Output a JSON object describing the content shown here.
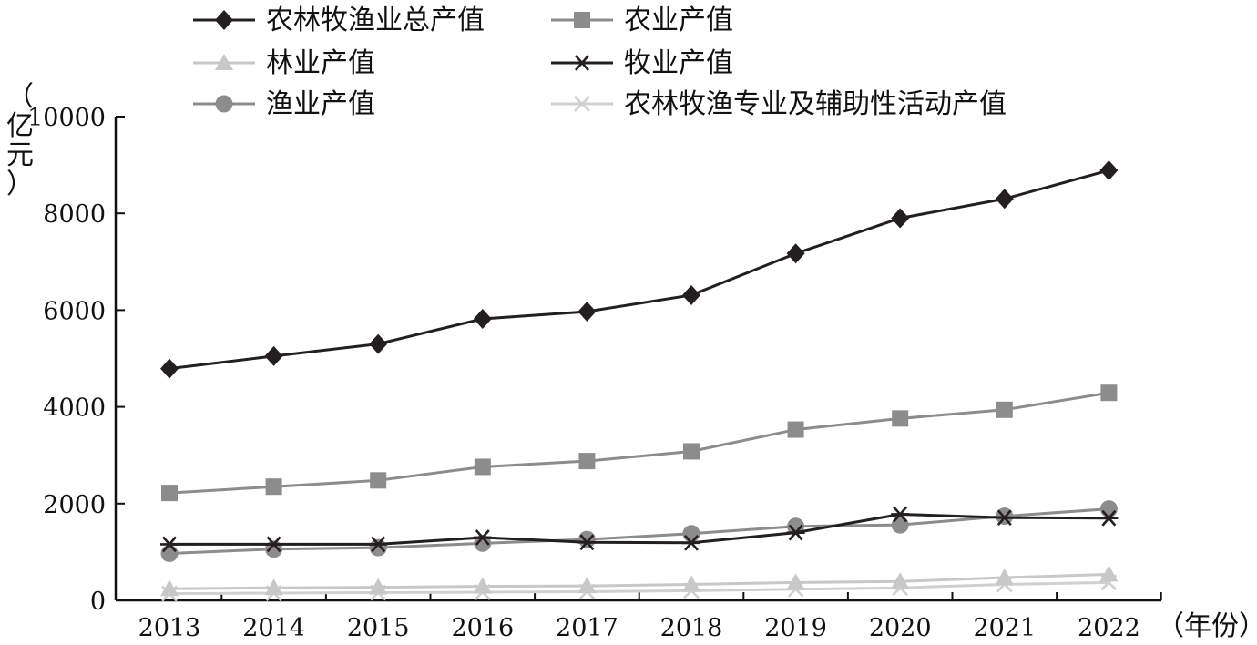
{
  "chart_data": {
    "type": "line",
    "x": [
      "2013",
      "2014",
      "2015",
      "2016",
      "2017",
      "2018",
      "2019",
      "2020",
      "2021",
      "2022"
    ],
    "ylim": [
      0,
      10000
    ],
    "yticks": [
      "0",
      "2000",
      "4000",
      "6000",
      "8000",
      "10000"
    ],
    "ylabel": "（亿元）",
    "xlabel": "（年份）",
    "grid": false,
    "legend_position": "top",
    "series": [
      {
        "name": "农林牧渔业总产值",
        "marker": "diamond",
        "color": "#231f20",
        "values": [
          4790,
          5050,
          5300,
          5820,
          5970,
          6310,
          7170,
          7900,
          8300,
          8890
        ]
      },
      {
        "name": "农业产值",
        "marker": "square",
        "color": "#8c8c8c",
        "values": [
          2220,
          2350,
          2480,
          2760,
          2880,
          3080,
          3530,
          3760,
          3940,
          4290
        ]
      },
      {
        "name": "林业产值",
        "marker": "triangle",
        "color": "#c8c8c8",
        "values": [
          240,
          260,
          270,
          290,
          300,
          330,
          370,
          390,
          470,
          540
        ]
      },
      {
        "name": "牧业产值",
        "marker": "asterisk",
        "color": "#231f20",
        "values": [
          1160,
          1160,
          1160,
          1300,
          1200,
          1190,
          1400,
          1780,
          1710,
          1700
        ]
      },
      {
        "name": "渔业产值",
        "marker": "circle",
        "color": "#8c8c8c",
        "values": [
          970,
          1060,
          1090,
          1180,
          1260,
          1380,
          1530,
          1560,
          1740,
          1890
        ]
      },
      {
        "name": "农林牧渔专业及辅助性活动产值",
        "marker": "x",
        "color": "#d0d0d0",
        "values": [
          140,
          150,
          160,
          170,
          180,
          200,
          230,
          260,
          330,
          370
        ]
      }
    ]
  }
}
